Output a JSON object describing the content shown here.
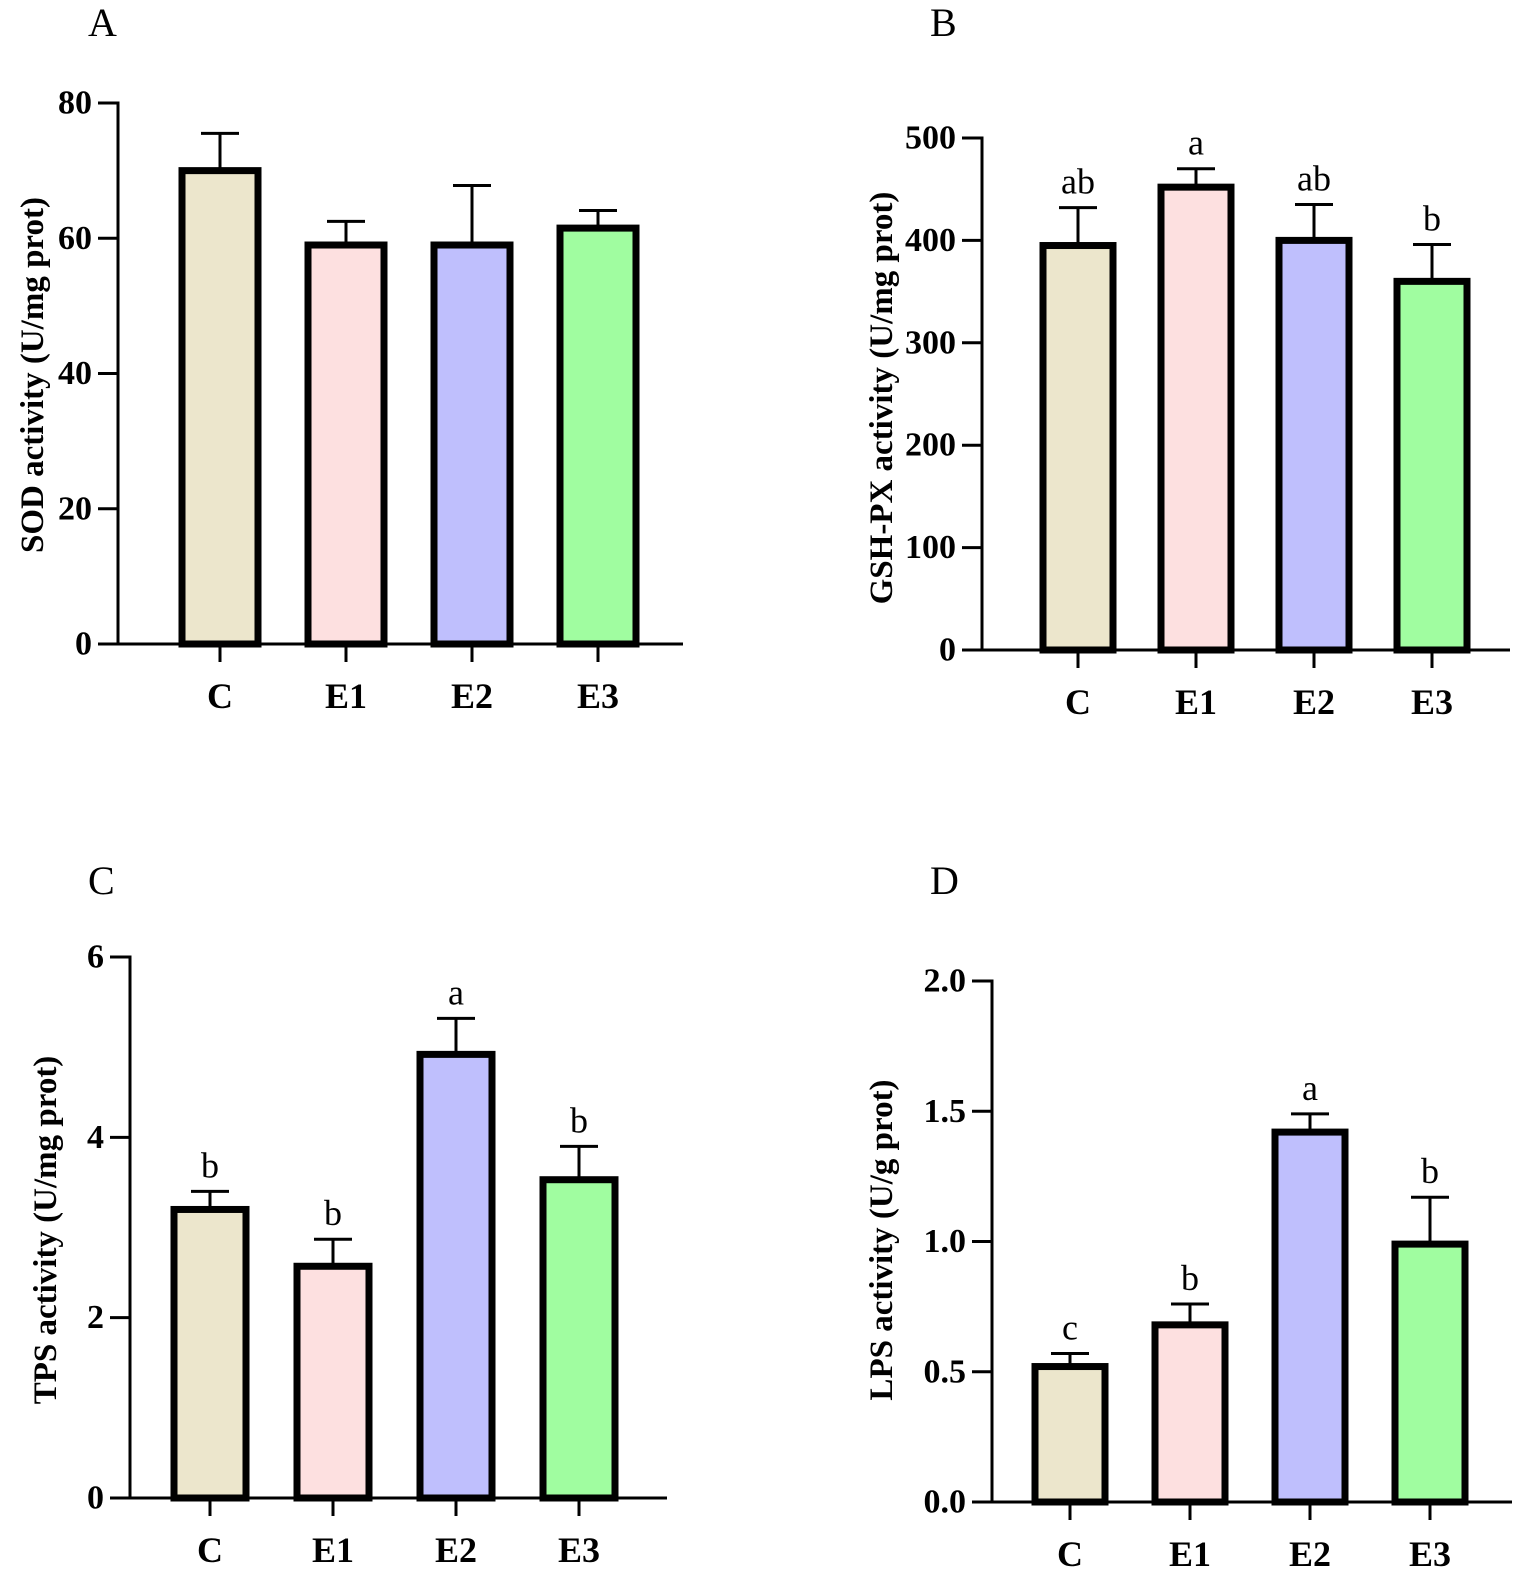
{
  "chart_data": [
    {
      "type": "bar",
      "panel": "A",
      "ylabel": "SOD activity (U/mg prot)",
      "ylim": [
        0,
        80
      ],
      "yticks": [
        0,
        20,
        40,
        60,
        80
      ],
      "categories": [
        "C",
        "E1",
        "E2",
        "E3"
      ],
      "values": [
        70,
        59,
        59,
        61.5
      ],
      "errors": [
        5.5,
        3.5,
        8.8,
        2.6
      ],
      "labels": [
        "",
        "",
        "",
        ""
      ],
      "colors": [
        "#ece6cc",
        "#fde0e0",
        "#bfbffd",
        "#a0fda0"
      ]
    },
    {
      "type": "bar",
      "panel": "B",
      "ylabel": "GSH-PX activity (U/mg prot)",
      "ylim": [
        0,
        500
      ],
      "yticks": [
        0,
        100,
        200,
        300,
        400,
        500
      ],
      "categories": [
        "C",
        "E1",
        "E2",
        "E3"
      ],
      "values": [
        395,
        452,
        400,
        360
      ],
      "errors": [
        37,
        18,
        35,
        36
      ],
      "labels": [
        "ab",
        "a",
        "ab",
        "b"
      ],
      "colors": [
        "#ece6cc",
        "#fde0e0",
        "#bfbffd",
        "#a0fda0"
      ]
    },
    {
      "type": "bar",
      "panel": "C",
      "ylabel": "TPS activity (U/mg prot)",
      "ylim": [
        0,
        6
      ],
      "yticks": [
        0,
        2,
        4,
        6
      ],
      "categories": [
        "C",
        "E1",
        "E2",
        "E3"
      ],
      "values": [
        3.2,
        2.57,
        4.92,
        3.53
      ],
      "errors": [
        0.2,
        0.3,
        0.4,
        0.37
      ],
      "labels": [
        "b",
        "b",
        "a",
        "b"
      ],
      "colors": [
        "#ece6cc",
        "#fde0e0",
        "#bfbffd",
        "#a0fda0"
      ]
    },
    {
      "type": "bar",
      "panel": "D",
      "ylabel": "LPS activity (U/g prot)",
      "ylim": [
        0,
        2.0
      ],
      "yticks": [
        "0.0",
        "0.5",
        "1.0",
        "1.5",
        "2.0"
      ],
      "categories": [
        "C",
        "E1",
        "E2",
        "E3"
      ],
      "values": [
        0.52,
        0.68,
        1.42,
        0.99
      ],
      "errors": [
        0.05,
        0.08,
        0.07,
        0.18
      ],
      "labels": [
        "c",
        "b",
        "a",
        "b"
      ],
      "colors": [
        "#ece6cc",
        "#fde0e0",
        "#bfbffd",
        "#a0fda0"
      ]
    }
  ]
}
